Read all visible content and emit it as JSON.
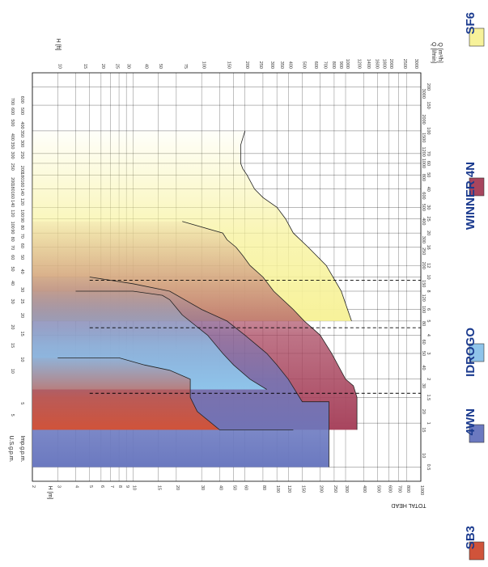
{
  "chart_data": {
    "type": "area",
    "orientation": "rotated-90-clockwise",
    "xlabel_us": "U.S.g.p.m.",
    "xlabel_imp": "Imp.g.p.m.",
    "xlabel_q_h": "Q [m³/h]",
    "xlabel_q_l": "Q [l/min]",
    "ylabel_m": "H [m]",
    "ylabel_ft": "H [ft]",
    "ylabel_total": "TOTAL HEAD",
    "head_ticks_m": [
      "1000",
      "800",
      "700",
      "600",
      "500",
      "400",
      "300",
      "250",
      "200",
      "150",
      "120",
      "100",
      "80",
      "60",
      "50",
      "40",
      "30",
      "20",
      "15",
      "10",
      "9",
      "8",
      "7",
      "6",
      "5",
      "4",
      "3",
      "2"
    ],
    "head_ticks_ft": [
      "3000",
      "2500",
      "2000",
      "1800",
      "1600",
      "1400",
      "1200",
      "1000",
      "900",
      "800",
      "700",
      "600",
      "500",
      "400",
      "350",
      "300",
      "250",
      "200",
      "150",
      "100",
      "75",
      "50",
      "40",
      "30",
      "25",
      "20",
      "15",
      "10"
    ],
    "flow_ticks_usgpm": [
      "5",
      "10",
      "15",
      "20",
      "30",
      "40",
      "50",
      "60",
      "70",
      "80",
      "90",
      "100",
      "120",
      "140",
      "160",
      "180",
      "200",
      "250",
      "300",
      "350",
      "400",
      "500",
      "600",
      "700"
    ],
    "flow_ticks_impgpm": [
      "5",
      "10",
      "15",
      "20",
      "25",
      "30",
      "40",
      "50",
      "60",
      "70",
      "80",
      "90",
      "100",
      "120",
      "140",
      "160",
      "180",
      "200",
      "250",
      "300",
      "350",
      "400",
      "500",
      "600"
    ],
    "flow_ticks_m3h": [
      "0.5",
      "1",
      "1.5",
      "2",
      "3",
      "4",
      "5",
      "6",
      "8",
      "10",
      "12",
      "16",
      "20",
      "25",
      "30",
      "40",
      "50",
      "60",
      "70",
      "100",
      "150",
      "200"
    ],
    "flow_ticks_lmin": [
      "5",
      "10",
      "15",
      "20",
      "30",
      "40",
      "50",
      "60",
      "80",
      "100",
      "120",
      "150",
      "200",
      "250",
      "300",
      "400",
      "500",
      "600",
      "800",
      "1000",
      "1200",
      "1500",
      "2000",
      "3000"
    ],
    "series": [
      {
        "name": "SB3",
        "color": "#d0533a",
        "outline": [
          [
            0.9,
            130
          ],
          [
            0.9,
            40
          ],
          [
            1.2,
            28
          ],
          [
            1.5,
            25
          ],
          [
            2.0,
            25
          ],
          [
            2.3,
            18
          ],
          [
            2.5,
            12
          ],
          [
            2.8,
            8
          ],
          [
            2.8,
            3
          ]
        ]
      },
      {
        "name": "4WN",
        "color": "#6b79c0",
        "outline": [
          [
            0.5,
            230
          ],
          [
            1.4,
            230
          ],
          [
            1.4,
            150
          ],
          [
            2.0,
            120
          ],
          [
            2.5,
            100
          ],
          [
            3.0,
            85
          ],
          [
            4.0,
            60
          ],
          [
            5.0,
            45
          ],
          [
            6.0,
            30
          ],
          [
            8.0,
            18
          ],
          [
            9.0,
            10
          ],
          [
            10.0,
            5
          ]
        ]
      },
      {
        "name": "IDROGO",
        "color": "#8fc4ea",
        "outline": [
          [
            1.7,
            85
          ],
          [
            2.0,
            65
          ],
          [
            2.5,
            50
          ],
          [
            3.0,
            42
          ],
          [
            4.0,
            33
          ],
          [
            5.5,
            22
          ],
          [
            7.0,
            18
          ],
          [
            7.5,
            16
          ],
          [
            8.0,
            10
          ],
          [
            8.0,
            4
          ]
        ]
      },
      {
        "name": "WINNER 4N",
        "color": "#a8455e",
        "outline": [
          [
            0.9,
            360
          ],
          [
            1.5,
            360
          ],
          [
            1.8,
            340
          ],
          [
            2.0,
            300
          ],
          [
            3.0,
            240
          ],
          [
            4.0,
            200
          ],
          [
            5.0,
            155
          ],
          [
            6.0,
            130
          ],
          [
            8.0,
            95
          ],
          [
            10.0,
            80
          ],
          [
            12.0,
            65
          ],
          [
            14.0,
            58
          ],
          [
            16.0,
            52
          ],
          [
            18.0,
            45
          ],
          [
            20.0,
            42
          ],
          [
            24.0,
            22
          ]
        ]
      },
      {
        "name": "SF6",
        "color": "#f7f29a",
        "outline": [
          [
            5.0,
            330
          ],
          [
            8.0,
            280
          ],
          [
            12.0,
            220
          ],
          [
            16.0,
            165
          ],
          [
            20.0,
            130
          ],
          [
            25.0,
            115
          ],
          [
            30.0,
            100
          ],
          [
            35.0,
            80
          ],
          [
            40.0,
            70
          ],
          [
            50.0,
            62
          ],
          [
            55.0,
            58
          ],
          [
            60.0,
            56
          ],
          [
            80.0,
            56
          ],
          [
            100.0,
            60
          ]
        ]
      }
    ],
    "reference_lines_m3h": [
      "1.6",
      "4.5",
      "9.5"
    ],
    "grid": true,
    "legend_placement": "bottom-edge (rotated)"
  },
  "legend": [
    {
      "label": "SB3",
      "color": "#d0533a",
      "text_color": "#1b3b8f"
    },
    {
      "label": "4WN",
      "color": "#6b79c0",
      "text_color": "#1b3b8f"
    },
    {
      "label": "IDROGO",
      "color": "#8fc4ea",
      "text_color": "#1b3b8f"
    },
    {
      "label": "WINNER 4N",
      "color": "#a8455e",
      "text_color": "#1b3b8f"
    },
    {
      "label": "SF6",
      "color": "#f7f29a",
      "text_color": "#1b3b8f"
    }
  ]
}
